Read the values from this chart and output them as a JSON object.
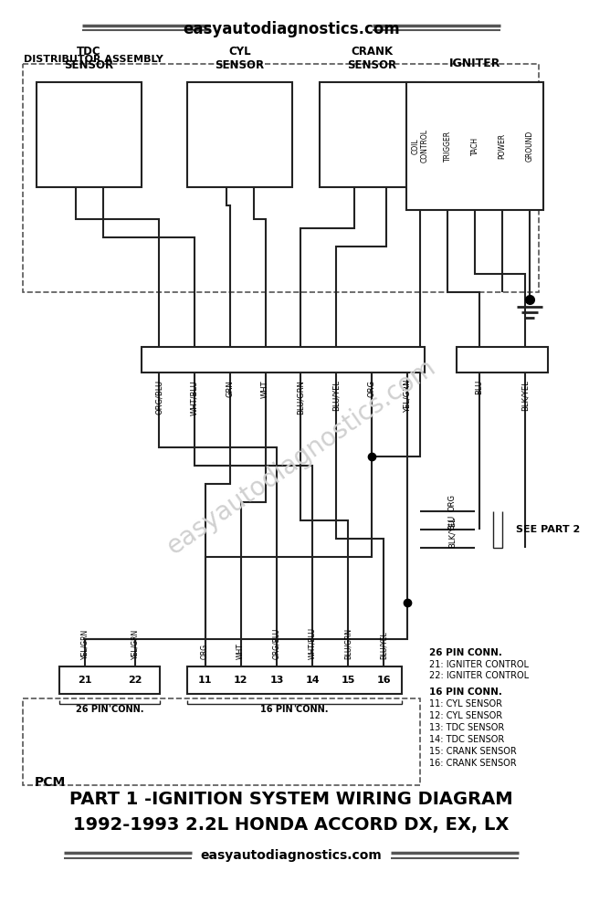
{
  "bg_color": "#ffffff",
  "lc": "#222222",
  "title_line1": "PART 1 -IGNITION SYSTEM WIRING DIAGRAM",
  "title_line2": "1992-1993 2.2L HONDA ACCORD DX, EX, LX",
  "website": "easyautodiagnostics.com",
  "dist_label": "DISTRIBUTOR ASSEMBLY",
  "igniter_label": "IGNITER",
  "igniter_pins": [
    "COIL\nCONTROL",
    "TRIGGER",
    "TACH",
    "POWER",
    "GROUND"
  ],
  "c8_labels": [
    "ORG/BLU",
    "WHT/BLU",
    "GRN",
    "WHT",
    "BLU/GRN",
    "BLU/YEL",
    "ORG",
    "YEL/GRN"
  ],
  "c2_labels": [
    "BLU",
    "BLK/YEL"
  ],
  "p26_labels": [
    "21",
    "22"
  ],
  "p26_wires": [
    "YEL/GRN",
    "YEL/GRN"
  ],
  "p16_labels": [
    "11",
    "12",
    "13",
    "14",
    "15",
    "16"
  ],
  "p16_wires": [
    "ORG",
    "WHT",
    "ORG/BLU",
    "WHT/BLU",
    "BLU/GRN",
    "BLU/YEL"
  ],
  "ann_26pin": [
    "26 PIN CONN.",
    "21: IGNITER CONTROL",
    "22: IGNITER CONTROL"
  ],
  "ann_16pin": [
    "16 PIN CONN.",
    "11: CYL SENSOR",
    "12: CYL SENSOR",
    "13: TDC SENSOR",
    "14: TDC SENSOR",
    "15: CRANK SENSOR",
    "16: CRANK SENSOR"
  ],
  "see_part2": "SEE PART 2",
  "pcm_label": "PCM",
  "watermark": "easyautodiagnostics.com"
}
